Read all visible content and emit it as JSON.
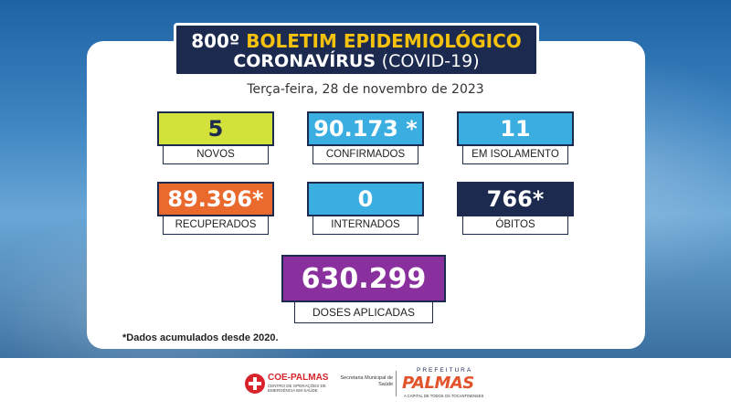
{
  "header": {
    "title_number": "800º",
    "title_highlight": "BOLETIM EPIDEMIOLÓGICO",
    "subtitle_main": "CORONAVÍRUS",
    "subtitle_paren": "(COVID-19)",
    "date": "Terça-feira, 28 de novembro de 2023"
  },
  "stats": {
    "novos": {
      "value": "5",
      "label": "NOVOS"
    },
    "confirmados": {
      "value": "90.173 *",
      "label": "CONFIRMADOS"
    },
    "isolamento": {
      "value": "11",
      "label": "EM ISOLAMENTO"
    },
    "recuperados": {
      "value": "89.396*",
      "label": "RECUPERADOS"
    },
    "internados": {
      "value": "0",
      "label": "INTERNADOS"
    },
    "obitos": {
      "value": "766*",
      "label": "ÓBITOS"
    },
    "doses": {
      "value": "630.299",
      "label": "DOSES APLICADAS"
    }
  },
  "note": "*Dados acumulados desde 2020.",
  "footer": {
    "coe_title": "COE-PALMAS",
    "coe_subtitle": "CENTRO DE OPERAÇÕES DE EMERGÊNCIA EM SAÚDE",
    "secretaria": "Secretaria Municipal de Saúde",
    "prefeitura": "PREFEITURA",
    "palmas": "PALMAS",
    "tagline": "A CAPITAL DE TODOS OS TOCANTINENSES"
  },
  "colors": {
    "navy": "#1c2a4f",
    "yellow_highlight": "#f4c20d",
    "novos": "#d3e13b",
    "blue": "#3aaee0",
    "orange": "#e96a2c",
    "purple": "#8a2f9e",
    "coe_red": "#d8232a"
  }
}
